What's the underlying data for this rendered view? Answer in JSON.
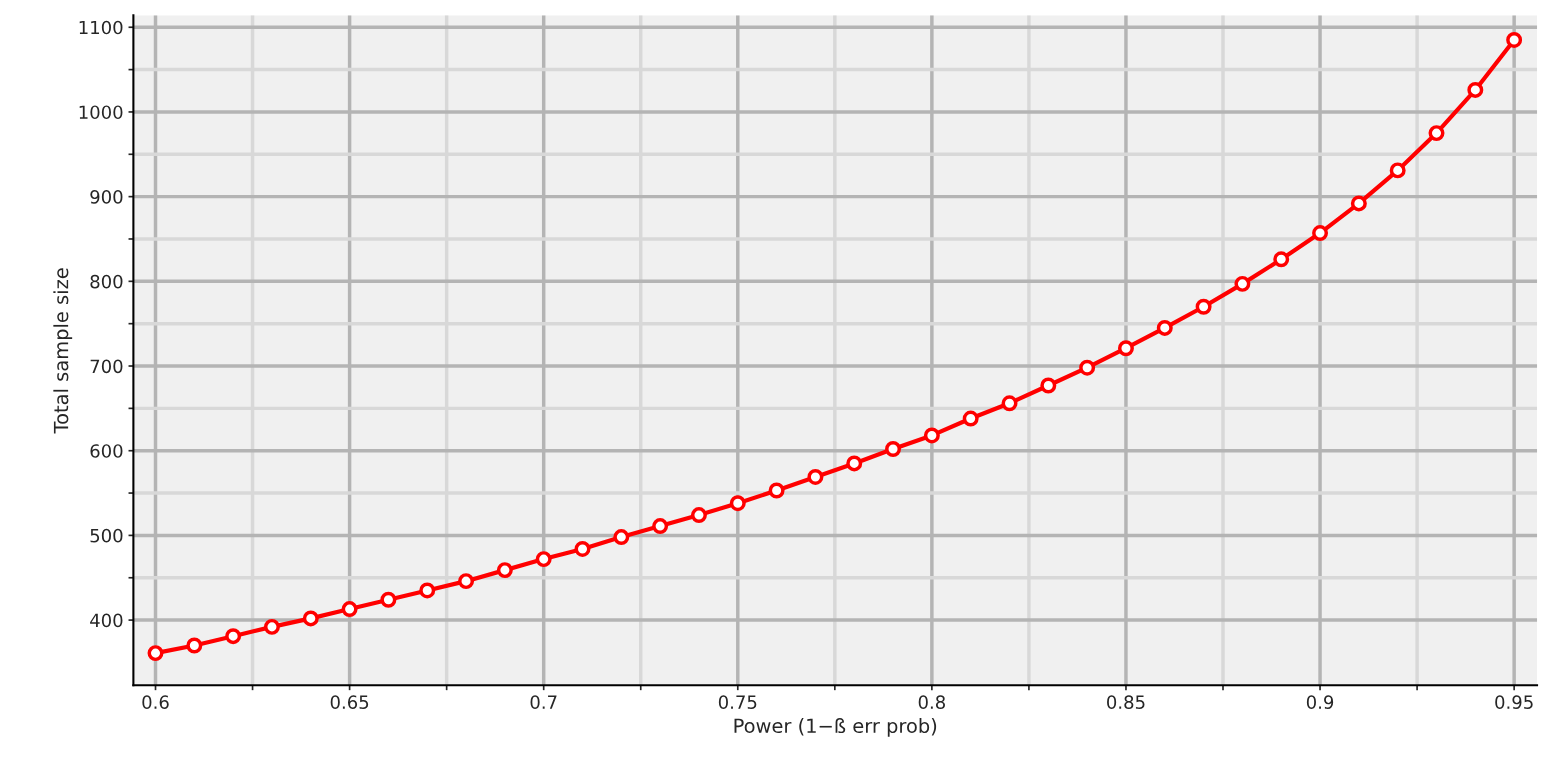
{
  "chart_data": {
    "type": "line",
    "xlabel": "Power (1−ß err prob)",
    "ylabel": "Total sample size",
    "x": [
      0.6,
      0.61,
      0.62,
      0.63,
      0.64,
      0.65,
      0.66,
      0.67,
      0.68,
      0.69,
      0.7,
      0.71,
      0.72,
      0.73,
      0.74,
      0.75,
      0.76,
      0.77,
      0.78,
      0.79,
      0.8,
      0.81,
      0.82,
      0.83,
      0.84,
      0.85,
      0.86,
      0.87,
      0.88,
      0.89,
      0.9,
      0.91,
      0.92,
      0.93,
      0.94,
      0.95
    ],
    "series": [
      {
        "color": "#ff0000",
        "values": [
          361,
          370,
          381,
          392,
          402,
          413,
          424,
          435,
          446,
          459,
          472,
          484,
          498,
          511,
          524,
          538,
          553,
          569,
          585,
          602,
          618,
          638,
          656,
          677,
          698,
          721,
          745,
          770,
          797,
          826,
          857,
          892,
          931,
          975,
          1026,
          1085
        ]
      }
    ],
    "xlim": [
      0.5943,
      0.9559
    ],
    "ylim": [
      323,
      1114
    ],
    "xticks": [
      0.6,
      {
        "value": 0.625,
        "label": null
      },
      0.65,
      {
        "value": 0.675,
        "label": null
      },
      0.7,
      {
        "value": 0.725,
        "label": null
      },
      0.75,
      {
        "value": 0.775,
        "label": null
      },
      0.8,
      {
        "value": 0.825,
        "label": null
      },
      0.85,
      {
        "value": 0.875,
        "label": null
      },
      0.9,
      {
        "value": 0.925,
        "label": null
      },
      0.95
    ],
    "yticks": [
      400,
      {
        "value": 450,
        "label": null
      },
      500,
      {
        "value": 550,
        "label": null
      },
      600,
      {
        "value": 650,
        "label": null
      },
      700,
      {
        "value": 750,
        "label": null
      },
      800,
      {
        "value": 850,
        "label": null
      },
      900,
      {
        "value": 950,
        "label": null
      },
      1000,
      {
        "value": 1050,
        "label": null
      },
      1100
    ],
    "grid": true,
    "marker": "circle",
    "line_style": "solid"
  }
}
